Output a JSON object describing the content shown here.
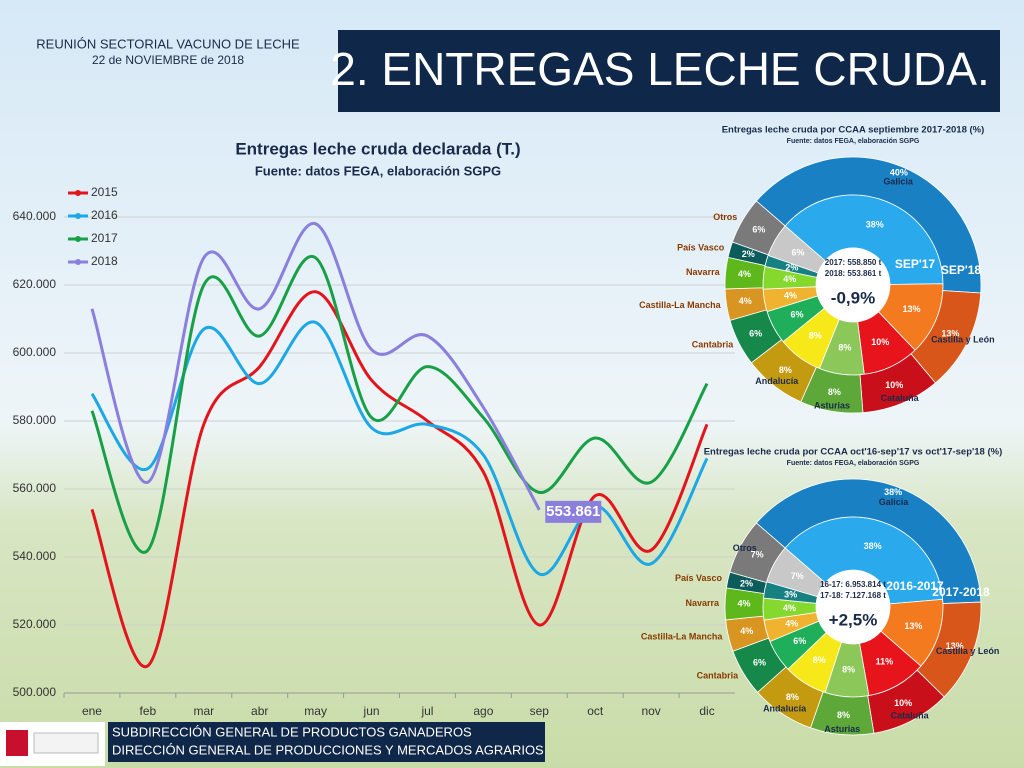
{
  "header": {
    "meeting": "REUNIÓN SECTORIAL VACUNO DE LECHE",
    "date": "22 de NOVIEMBRE de 2018",
    "title": "2. ENTREGAS LECHE CRUDA."
  },
  "footer": {
    "lines": [
      "SUBDIRECCIÓN GENERAL DE PRODUCTOS GANADEROS",
      "DIRECCIÓN GENERAL DE PRODUCCIONES Y MERCADOS AGRARIOS"
    ]
  },
  "chart_data": [
    {
      "type": "line",
      "title": "Entregas leche cruda declarada (T.)",
      "subtitle": "Fuente: datos FEGA, elaboración SGPG",
      "categories": [
        "ene",
        "feb",
        "mar",
        "abr",
        "may",
        "jun",
        "jul",
        "ago",
        "sep",
        "oct",
        "nov",
        "dic"
      ],
      "series": [
        {
          "name": "2015",
          "color": "#e3141c",
          "values": [
            554000,
            508000,
            579000,
            596000,
            618000,
            592000,
            580000,
            565000,
            520000,
            558000,
            542000,
            579000
          ]
        },
        {
          "name": "2016",
          "color": "#1ca7e6",
          "values": [
            588000,
            566000,
            607000,
            591000,
            609000,
            578000,
            579000,
            570000,
            535000,
            555000,
            538000,
            569000
          ]
        },
        {
          "name": "2017",
          "color": "#18a047",
          "values": [
            583000,
            542000,
            620000,
            605000,
            628000,
            581000,
            596000,
            581000,
            559000,
            575000,
            562000,
            591000
          ]
        },
        {
          "name": "2018",
          "color": "#8a7fdc",
          "values": [
            613000,
            562000,
            628000,
            613000,
            638000,
            601000,
            605000,
            584000,
            553861,
            null,
            null,
            null
          ],
          "value_labels": [
            null,
            null,
            null,
            null,
            null,
            null,
            null,
            null,
            "553.861",
            null,
            null,
            null
          ]
        }
      ],
      "ylim": [
        500000,
        640000
      ],
      "yticks": [
        {
          "value": 500000,
          "label": "500.000"
        },
        {
          "value": 520000,
          "label": "520.000"
        },
        {
          "value": 540000,
          "label": "540.000"
        },
        {
          "value": 560000,
          "label": "560.000"
        },
        {
          "value": 580000,
          "label": "580.000"
        },
        {
          "value": 600000,
          "label": "600.000"
        },
        {
          "value": 620000,
          "label": "620.000"
        },
        {
          "value": 640000,
          "label": "640.000"
        }
      ],
      "grid": true,
      "legend": "upper left"
    },
    {
      "type": "pie",
      "donut": true,
      "title": "Entregas leche cruda por CCAA septiembre 2017-2018 (%)",
      "subtitle": "Fuente: datos FEGA, elaboración SGPG",
      "categories": [
        "Galicia",
        "Castilla y León",
        "Cataluña",
        "Asturias",
        "Andalucía",
        "Cantabria",
        "Castilla-La Mancha",
        "Navarra",
        "País Vasco",
        "Otros"
      ],
      "series": [
        {
          "name": "SEP'17",
          "colors": [
            "#2aa9ec",
            "#f47a20",
            "#e8141c",
            "#8cc75a",
            "#f7e81a",
            "#1fae5a",
            "#f0b330",
            "#84d82e",
            "#178080",
            "#c8c8c8"
          ],
          "values": [
            38,
            13,
            10,
            8,
            8,
            6,
            4,
            4,
            2,
            6
          ],
          "value_labels": [
            "38%",
            "13%",
            "10%",
            "8%",
            "8%",
            "6%",
            "4%",
            "4%",
            "2%",
            "6%"
          ]
        },
        {
          "name": "SEP'18",
          "colors": [
            "#1a80c4",
            "#d9561a",
            "#c80f1a",
            "#5ea83a",
            "#c49a10",
            "#16884a",
            "#d99522",
            "#5eb81c",
            "#0d5c5c",
            "#7a7a7a"
          ],
          "values": [
            40,
            13,
            10,
            8,
            8,
            6,
            4,
            4,
            2,
            6
          ],
          "value_labels": [
            "40%",
            "13%",
            "10%",
            "8%",
            "8%",
            "6%",
            "4%",
            "4%",
            "2%",
            "6%"
          ]
        }
      ],
      "center_text": [
        "2017: 558.850 t",
        "2018: 553.861 t"
      ],
      "change": "-0,9%"
    },
    {
      "type": "pie",
      "donut": true,
      "title": "Entregas leche cruda por CCAA oct'16-sep'17 vs oct'17-sep'18 (%)",
      "subtitle": "Fuente: datos FEGA, elaboración SGPG",
      "categories": [
        "Galicia",
        "Castilla y León",
        "Cataluña",
        "Asturias",
        "Andalucía",
        "Cantabria",
        "Castilla-La Mancha",
        "Navarra",
        "País Vasco",
        "Otros"
      ],
      "series": [
        {
          "name": "2016-2017",
          "colors": [
            "#2aa9ec",
            "#f47a20",
            "#e8141c",
            "#8cc75a",
            "#f7e81a",
            "#1fae5a",
            "#f0b330",
            "#84d82e",
            "#178080",
            "#c8c8c8"
          ],
          "values": [
            38,
            13,
            11,
            8,
            8,
            6,
            4,
            4,
            3,
            7
          ],
          "value_labels": [
            "38%",
            "13%",
            "11%",
            "8%",
            "8%",
            "6%",
            "4%",
            "4%",
            "3%",
            "7%"
          ]
        },
        {
          "name": "2017-2018",
          "colors": [
            "#1a80c4",
            "#d9561a",
            "#c80f1a",
            "#5ea83a",
            "#c49a10",
            "#16884a",
            "#d99522",
            "#5eb81c",
            "#0d5c5c",
            "#7a7a7a"
          ],
          "values": [
            38,
            13,
            10,
            8,
            8,
            6,
            4,
            4,
            2,
            7
          ],
          "value_labels": [
            "38%",
            "13%",
            "10%",
            "8%",
            "8%",
            "6%",
            "4%",
            "4%",
            "2%",
            "7%"
          ]
        }
      ],
      "center_text": [
        "16-17: 6.953.814 t",
        "17-18: 7.127.168 t"
      ],
      "change": "+2,5%"
    }
  ]
}
